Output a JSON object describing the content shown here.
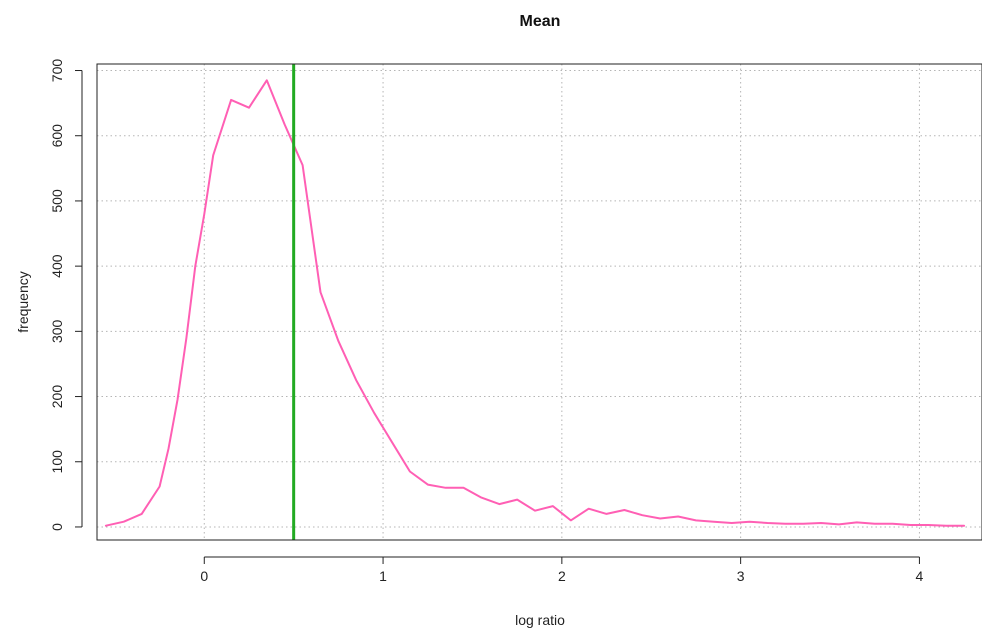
{
  "chart_data": {
    "type": "line",
    "title": "Mean",
    "xlabel": "log ratio",
    "ylabel": "frequency",
    "xlim": [
      -0.6,
      4.35
    ],
    "ylim": [
      -20,
      710
    ],
    "x_ticks": [
      0,
      1,
      2,
      3,
      4
    ],
    "y_ticks": [
      0,
      100,
      200,
      300,
      400,
      500,
      600,
      700
    ],
    "x_tick_labels": [
      "0",
      "1",
      "2",
      "3",
      "4"
    ],
    "y_tick_labels": [
      "0",
      "100",
      "200",
      "300",
      "400",
      "500",
      "600",
      "700"
    ],
    "grid": true,
    "series": [
      {
        "color": "#ff5fb4",
        "x": [
          -0.55,
          -0.45,
          -0.35,
          -0.25,
          -0.2,
          -0.15,
          -0.1,
          -0.05,
          0.0,
          0.05,
          0.15,
          0.25,
          0.35,
          0.45,
          0.55,
          0.65,
          0.75,
          0.85,
          0.95,
          1.05,
          1.15,
          1.25,
          1.35,
          1.45,
          1.55,
          1.65,
          1.75,
          1.85,
          1.95,
          2.05,
          2.15,
          2.25,
          2.35,
          2.45,
          2.55,
          2.65,
          2.75,
          2.85,
          2.95,
          3.05,
          3.15,
          3.25,
          3.35,
          3.45,
          3.55,
          3.65,
          3.75,
          3.85,
          3.95,
          4.05,
          4.15,
          4.25
        ],
        "y": [
          2,
          8,
          20,
          62,
          120,
          195,
          290,
          400,
          480,
          570,
          655,
          643,
          685,
          617,
          555,
          360,
          285,
          225,
          175,
          130,
          85,
          65,
          60,
          60,
          45,
          35,
          42,
          25,
          32,
          10,
          28,
          20,
          26,
          18,
          13,
          16,
          10,
          8,
          6,
          8,
          6,
          5,
          5,
          6,
          4,
          7,
          5,
          5,
          3,
          3,
          2,
          2
        ]
      }
    ],
    "reference_line": {
      "x": 0.5,
      "color": "#22aa22"
    }
  }
}
